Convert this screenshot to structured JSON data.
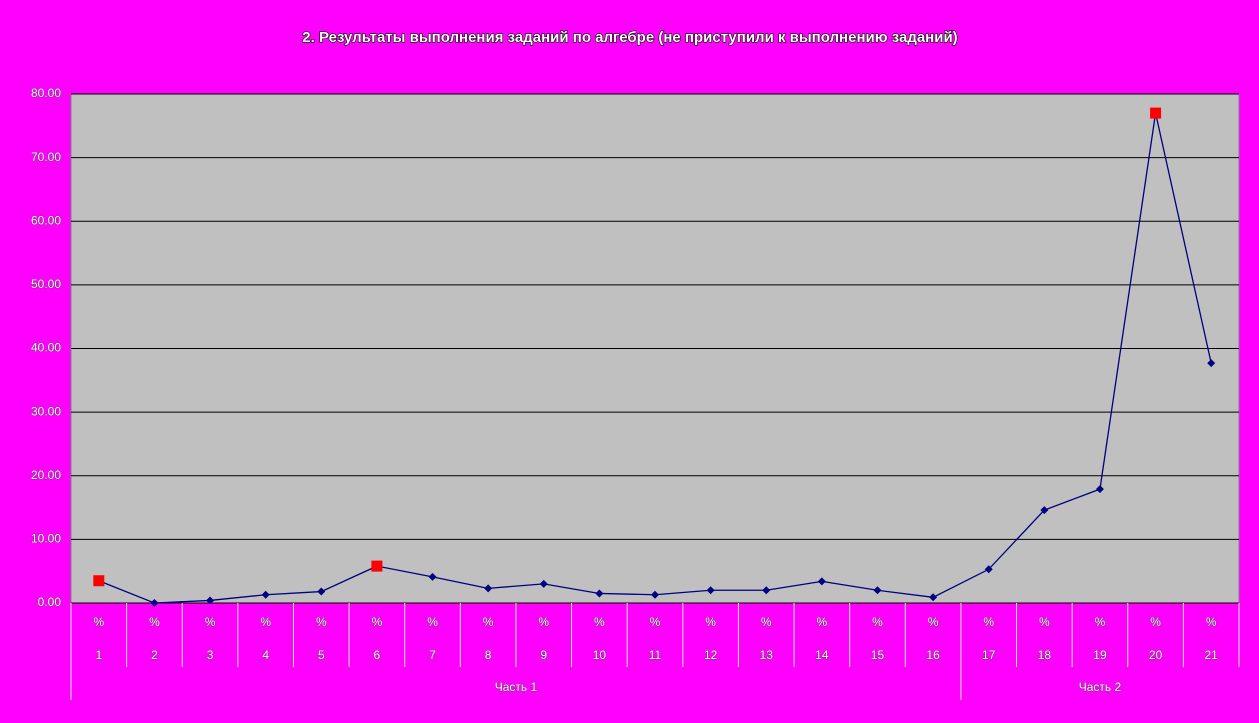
{
  "chart_data": {
    "type": "line",
    "title": "2. Результаты выполнения заданий по алгебре  (не приступили к выполнению заданий)",
    "categories": [
      "1",
      "2",
      "3",
      "4",
      "5",
      "6",
      "7",
      "8",
      "9",
      "10",
      "11",
      "12",
      "13",
      "14",
      "15",
      "16",
      "17",
      "18",
      "19",
      "20",
      "21"
    ],
    "category_units": [
      "%",
      "%",
      "%",
      "%",
      "%",
      "%",
      "%",
      "%",
      "%",
      "%",
      "%",
      "%",
      "%",
      "%",
      "%",
      "%",
      "%",
      "%",
      "%",
      "%",
      "%"
    ],
    "groups": [
      {
        "name": "Часть 1",
        "count": 16
      },
      {
        "name": "Часть 2",
        "count": 5
      }
    ],
    "series": [
      {
        "color": "#000080",
        "values": [
          3.5,
          0,
          0.4,
          1.3,
          1.8,
          5.8,
          4.1,
          2.3,
          3.0,
          1.5,
          1.3,
          2.0,
          2.0,
          3.4,
          2.0,
          0.9,
          5.3,
          14.6,
          17.9,
          77.0,
          37.7
        ]
      }
    ],
    "highlight_indices": [
      0,
      5,
      19
    ],
    "highlight_color": "#ff0000",
    "ylim": [
      0,
      80
    ],
    "yticks": [
      {
        "value": 0,
        "label": "0.00"
      },
      {
        "value": 10,
        "label": "10.00"
      },
      {
        "value": 20,
        "label": "20.00"
      },
      {
        "value": 30,
        "label": "30.00"
      },
      {
        "value": 40,
        "label": "40.00"
      },
      {
        "value": 50,
        "label": "50.00"
      },
      {
        "value": 60,
        "label": "60.00"
      },
      {
        "value": 70,
        "label": "70.00"
      },
      {
        "value": 80,
        "label": "80.00"
      }
    ],
    "grid": true
  }
}
